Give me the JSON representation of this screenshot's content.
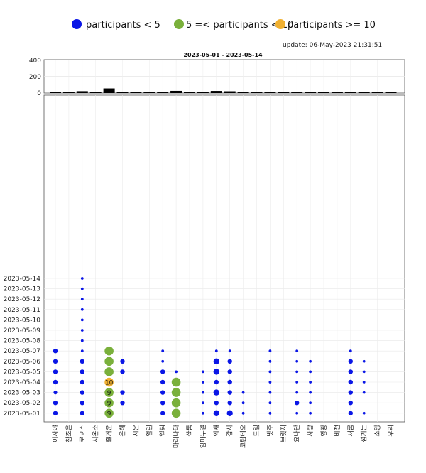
{
  "legend": {
    "items": [
      {
        "label": "participants < 5",
        "color": "#0a16e6"
      },
      {
        "label": "5 =< participants < 10",
        "color": "#7ab03b"
      },
      {
        "label": "participants >= 10",
        "color": "#f0b030"
      }
    ]
  },
  "update_text": "update: 06-May-2023 21:31:51",
  "chart_data": [
    {
      "type": "bar",
      "title": "2023-05-01   - 2023-05-14",
      "ylim": [
        0,
        400
      ],
      "yticks": [
        "400",
        "200",
        "0"
      ],
      "grid": true,
      "categories": [
        "이사야",
        "참조은",
        "로고스",
        "시온소",
        "즐거운",
        "은혜",
        "시온",
        "열린",
        "엘림",
        "마라나타",
        "샬롬",
        "임마누엘",
        "임재",
        "감사",
        "코람데오",
        "드림",
        "빛주",
        "브릿지",
        "요나단",
        "사랑",
        "영광",
        "비전",
        "새롬",
        "섬기는",
        "소망",
        "우리"
      ],
      "values": [
        17,
        2,
        22,
        2,
        55,
        10,
        2,
        4,
        15,
        26,
        2,
        10,
        25,
        21,
        5,
        2,
        10,
        2,
        16,
        10,
        2,
        2,
        16,
        8,
        2,
        2
      ],
      "color": "#000000"
    },
    {
      "type": "scatter",
      "grid": true,
      "y_dates": [
        "2023-05-14",
        "2023-05-13",
        "2023-05-12",
        "2023-05-11",
        "2023-05-10",
        "2023-05-09",
        "2023-05-08",
        "2023-05-07",
        "2023-05-06",
        "2023-05-05",
        "2023-05-04",
        "2023-05-03",
        "2023-05-02",
        "2023-05-01"
      ],
      "categories": [
        "이사야",
        "참조은",
        "로고스",
        "시온소",
        "즐거운",
        "은혜",
        "시온",
        "열린",
        "엘림",
        "마라나타",
        "샬롬",
        "임마누엘",
        "임재",
        "감사",
        "코람데오",
        "드림",
        "빛주",
        "브릿지",
        "요나단",
        "사랑",
        "영광",
        "비전",
        "새롬",
        "섬기는",
        "소망",
        "우리"
      ],
      "points": [
        {
          "x": "이사야",
          "y": "2023-05-07",
          "v": 3
        },
        {
          "x": "이사야",
          "y": "2023-05-06",
          "v": 3
        },
        {
          "x": "이사야",
          "y": "2023-05-05",
          "v": 3
        },
        {
          "x": "이사야",
          "y": "2023-05-04",
          "v": 3
        },
        {
          "x": "이사야",
          "y": "2023-05-03",
          "v": 2
        },
        {
          "x": "이사야",
          "y": "2023-05-02",
          "v": 3
        },
        {
          "x": "이사야",
          "y": "2023-05-01",
          "v": 3
        },
        {
          "x": "로고스",
          "y": "2023-05-14",
          "v": 1
        },
        {
          "x": "로고스",
          "y": "2023-05-13",
          "v": 1
        },
        {
          "x": "로고스",
          "y": "2023-05-12",
          "v": 1
        },
        {
          "x": "로고스",
          "y": "2023-05-11",
          "v": 1
        },
        {
          "x": "로고스",
          "y": "2023-05-10",
          "v": 1
        },
        {
          "x": "로고스",
          "y": "2023-05-09",
          "v": 1
        },
        {
          "x": "로고스",
          "y": "2023-05-08",
          "v": 1
        },
        {
          "x": "로고스",
          "y": "2023-05-07",
          "v": 1
        },
        {
          "x": "로고스",
          "y": "2023-05-06",
          "v": 3
        },
        {
          "x": "로고스",
          "y": "2023-05-05",
          "v": 3
        },
        {
          "x": "로고스",
          "y": "2023-05-04",
          "v": 3
        },
        {
          "x": "로고스",
          "y": "2023-05-03",
          "v": 3
        },
        {
          "x": "로고스",
          "y": "2023-05-02",
          "v": 3
        },
        {
          "x": "로고스",
          "y": "2023-05-01",
          "v": 3
        },
        {
          "x": "즐거운",
          "y": "2023-05-07",
          "v": 6
        },
        {
          "x": "즐거운",
          "y": "2023-05-06",
          "v": 8
        },
        {
          "x": "즐거운",
          "y": "2023-05-05",
          "v": 7
        },
        {
          "x": "즐거운",
          "y": "2023-05-04",
          "v": 10,
          "label": "10"
        },
        {
          "x": "즐거운",
          "y": "2023-05-03",
          "v": 9,
          "label": "9"
        },
        {
          "x": "즐거운",
          "y": "2023-05-02",
          "v": 9,
          "label": "9"
        },
        {
          "x": "즐거운",
          "y": "2023-05-01",
          "v": 9,
          "label": "9"
        },
        {
          "x": "은혜",
          "y": "2023-05-06",
          "v": 3
        },
        {
          "x": "은혜",
          "y": "2023-05-05",
          "v": 3
        },
        {
          "x": "은혜",
          "y": "2023-05-03",
          "v": 3
        },
        {
          "x": "은혜",
          "y": "2023-05-02",
          "v": 3
        },
        {
          "x": "엘림",
          "y": "2023-05-07",
          "v": 1
        },
        {
          "x": "엘림",
          "y": "2023-05-06",
          "v": 1
        },
        {
          "x": "엘림",
          "y": "2023-05-05",
          "v": 3
        },
        {
          "x": "엘림",
          "y": "2023-05-04",
          "v": 3
        },
        {
          "x": "엘림",
          "y": "2023-05-03",
          "v": 3
        },
        {
          "x": "엘림",
          "y": "2023-05-02",
          "v": 3
        },
        {
          "x": "엘림",
          "y": "2023-05-01",
          "v": 3
        },
        {
          "x": "마라나타",
          "y": "2023-05-05",
          "v": 1
        },
        {
          "x": "마라나타",
          "y": "2023-05-04",
          "v": 6
        },
        {
          "x": "마라나타",
          "y": "2023-05-03",
          "v": 6
        },
        {
          "x": "마라나타",
          "y": "2023-05-02",
          "v": 6
        },
        {
          "x": "마라나타",
          "y": "2023-05-01",
          "v": 6
        },
        {
          "x": "임마누엘",
          "y": "2023-05-05",
          "v": 1
        },
        {
          "x": "임마누엘",
          "y": "2023-05-04",
          "v": 1
        },
        {
          "x": "임마누엘",
          "y": "2023-05-03",
          "v": 1
        },
        {
          "x": "임마누엘",
          "y": "2023-05-02",
          "v": 1
        },
        {
          "x": "임마누엘",
          "y": "2023-05-01",
          "v": 1
        },
        {
          "x": "임재",
          "y": "2023-05-07",
          "v": 1
        },
        {
          "x": "임재",
          "y": "2023-05-06",
          "v": 4
        },
        {
          "x": "임재",
          "y": "2023-05-05",
          "v": 4
        },
        {
          "x": "임재",
          "y": "2023-05-04",
          "v": 3
        },
        {
          "x": "임재",
          "y": "2023-05-03",
          "v": 4
        },
        {
          "x": "임재",
          "y": "2023-05-02",
          "v": 3
        },
        {
          "x": "임재",
          "y": "2023-05-01",
          "v": 4
        },
        {
          "x": "감사",
          "y": "2023-05-07",
          "v": 1
        },
        {
          "x": "감사",
          "y": "2023-05-06",
          "v": 3
        },
        {
          "x": "감사",
          "y": "2023-05-05",
          "v": 3
        },
        {
          "x": "감사",
          "y": "2023-05-04",
          "v": 3
        },
        {
          "x": "감사",
          "y": "2023-05-03",
          "v": 3
        },
        {
          "x": "감사",
          "y": "2023-05-02",
          "v": 3
        },
        {
          "x": "감사",
          "y": "2023-05-01",
          "v": 4
        },
        {
          "x": "코람데오",
          "y": "2023-05-03",
          "v": 1
        },
        {
          "x": "코람데오",
          "y": "2023-05-02",
          "v": 1
        },
        {
          "x": "코람데오",
          "y": "2023-05-01",
          "v": 1
        },
        {
          "x": "빛주",
          "y": "2023-05-07",
          "v": 1
        },
        {
          "x": "빛주",
          "y": "2023-05-06",
          "v": 1
        },
        {
          "x": "빛주",
          "y": "2023-05-05",
          "v": 1
        },
        {
          "x": "빛주",
          "y": "2023-05-04",
          "v": 1
        },
        {
          "x": "빛주",
          "y": "2023-05-03",
          "v": 1
        },
        {
          "x": "빛주",
          "y": "2023-05-02",
          "v": 1
        },
        {
          "x": "빛주",
          "y": "2023-05-01",
          "v": 1
        },
        {
          "x": "요나단",
          "y": "2023-05-07",
          "v": 1
        },
        {
          "x": "요나단",
          "y": "2023-05-06",
          "v": 1
        },
        {
          "x": "요나단",
          "y": "2023-05-05",
          "v": 1
        },
        {
          "x": "요나단",
          "y": "2023-05-04",
          "v": 1
        },
        {
          "x": "요나단",
          "y": "2023-05-03",
          "v": 1
        },
        {
          "x": "요나단",
          "y": "2023-05-02",
          "v": 3
        },
        {
          "x": "요나단",
          "y": "2023-05-01",
          "v": 1
        },
        {
          "x": "사랑",
          "y": "2023-05-06",
          "v": 1
        },
        {
          "x": "사랑",
          "y": "2023-05-05",
          "v": 1
        },
        {
          "x": "사랑",
          "y": "2023-05-04",
          "v": 1
        },
        {
          "x": "사랑",
          "y": "2023-05-03",
          "v": 1
        },
        {
          "x": "사랑",
          "y": "2023-05-02",
          "v": 1
        },
        {
          "x": "사랑",
          "y": "2023-05-01",
          "v": 1
        },
        {
          "x": "새롬",
          "y": "2023-05-07",
          "v": 1
        },
        {
          "x": "새롬",
          "y": "2023-05-06",
          "v": 3
        },
        {
          "x": "새롬",
          "y": "2023-05-05",
          "v": 3
        },
        {
          "x": "새롬",
          "y": "2023-05-04",
          "v": 3
        },
        {
          "x": "새롬",
          "y": "2023-05-03",
          "v": 3
        },
        {
          "x": "새롬",
          "y": "2023-05-02",
          "v": 3
        },
        {
          "x": "새롬",
          "y": "2023-05-01",
          "v": 3
        },
        {
          "x": "섬기는",
          "y": "2023-05-06",
          "v": 1
        },
        {
          "x": "섬기는",
          "y": "2023-05-05",
          "v": 1
        },
        {
          "x": "섬기는",
          "y": "2023-05-04",
          "v": 1
        },
        {
          "x": "섬기는",
          "y": "2023-05-03",
          "v": 1
        },
        {
          "x": "섬기는",
          "y": "2023-05-01",
          "v": 1
        }
      ]
    }
  ]
}
